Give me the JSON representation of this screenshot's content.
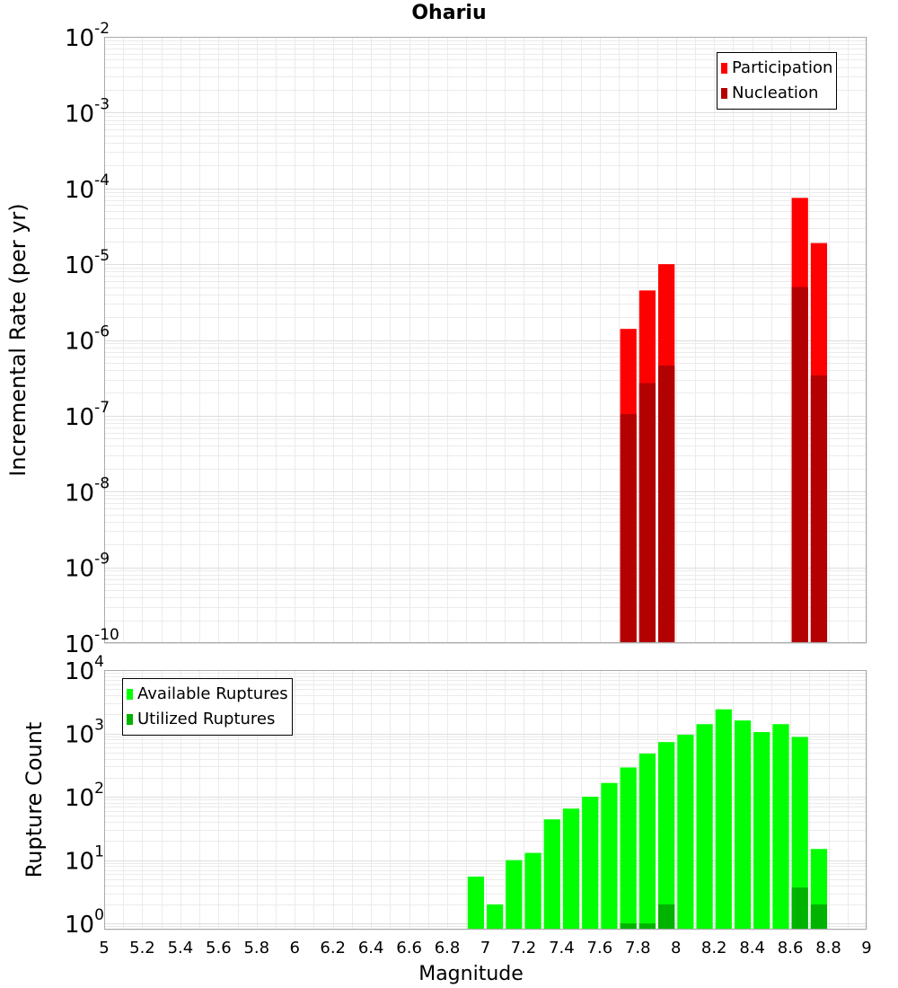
{
  "chart_data": [
    {
      "type": "bar",
      "title": "Ohariu",
      "xlabel": "",
      "ylabel": "Incremental Rate (per yr)",
      "yscale": "log",
      "ylim": [
        1e-10,
        0.01
      ],
      "xlim": [
        5,
        9
      ],
      "bin_width": 0.1,
      "grid": true,
      "legend_position": "top-right",
      "series": [
        {
          "name": "Participation",
          "color": "#ff0000",
          "points": [
            [
              7.75,
              1.4e-06
            ],
            [
              7.85,
              4.5e-06
            ],
            [
              7.95,
              1e-05
            ],
            [
              8.65,
              7.5e-05
            ],
            [
              8.75,
              1.9e-05
            ]
          ]
        },
        {
          "name": "Nucleation",
          "color": "#b30000",
          "points": [
            [
              7.75,
              1.05e-07
            ],
            [
              7.85,
              2.7e-07
            ],
            [
              7.95,
              4.6e-07
            ],
            [
              8.65,
              5e-06
            ],
            [
              8.75,
              3.4e-07
            ]
          ]
        }
      ]
    },
    {
      "type": "bar",
      "xlabel": "Magnitude",
      "ylabel": "Rupture Count",
      "yscale": "log",
      "ylim": [
        0.8,
        10000
      ],
      "xlim": [
        5,
        9
      ],
      "bin_width": 0.1,
      "grid": true,
      "legend_position": "top-left",
      "x_ticks": [
        "5",
        "5.2",
        "5.4",
        "5.6",
        "5.8",
        "6",
        "6.2",
        "6.4",
        "6.6",
        "6.8",
        "7",
        "7.2",
        "7.4",
        "7.6",
        "7.8",
        "8",
        "8.2",
        "8.4",
        "8.6",
        "8.8",
        "9"
      ],
      "series": [
        {
          "name": "Available Ruptures",
          "color": "#00ff00",
          "points": [
            [
              6.95,
              5.5
            ],
            [
              7.05,
              2
            ],
            [
              7.15,
              10
            ],
            [
              7.25,
              13
            ],
            [
              7.35,
              44
            ],
            [
              7.45,
              65
            ],
            [
              7.55,
              100
            ],
            [
              7.65,
              165
            ],
            [
              7.75,
              290
            ],
            [
              7.85,
              480
            ],
            [
              7.95,
              730
            ],
            [
              8.05,
              950
            ],
            [
              8.15,
              1400
            ],
            [
              8.25,
              2400
            ],
            [
              8.35,
              1600
            ],
            [
              8.45,
              1050
            ],
            [
              8.55,
              1400
            ],
            [
              8.65,
              880
            ],
            [
              8.75,
              15
            ]
          ]
        },
        {
          "name": "Utilized Ruptures",
          "color": "#00b300",
          "points": [
            [
              7.75,
              1
            ],
            [
              7.85,
              1
            ],
            [
              7.95,
              2
            ],
            [
              8.65,
              3.7
            ],
            [
              8.75,
              2
            ]
          ]
        }
      ]
    }
  ]
}
